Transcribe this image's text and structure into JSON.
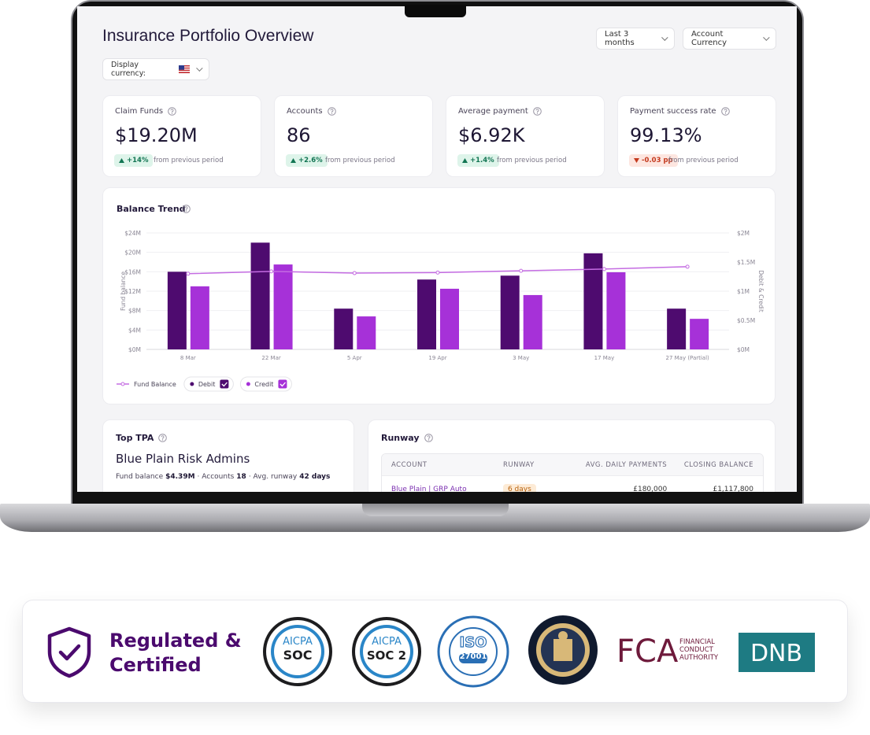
{
  "header": {
    "title": "Insurance Portfolio Overview",
    "period": "Last 3 months",
    "currency_mode": "Account Currency",
    "display_currency": "Display currency:"
  },
  "kpis": [
    {
      "label": "Claim Funds",
      "value": "$19.20M",
      "change": "+14%",
      "note": "from previous period"
    },
    {
      "label": "Accounts",
      "value": "86",
      "change": "+2.6%",
      "note": "from previous period"
    },
    {
      "label": "Average payment",
      "value": "$6.92K",
      "change": "+1.4%",
      "note": "from previous period"
    },
    {
      "label": "Payment success rate",
      "value": "99.13%",
      "change": "-0.03 pp",
      "note": "from previous period"
    }
  ],
  "chart_data": {
    "type": "bar",
    "title": "Balance Trend",
    "y_label": "Fund balance",
    "y2_label": "Debit & Credit",
    "categories": [
      "8 Mar",
      "22 Mar",
      "5 Apr",
      "19 Apr",
      "3 May",
      "17 May",
      "27 May (Partial)"
    ],
    "series": [
      {
        "name": "Fund Balance",
        "type": "line",
        "axis": "y2",
        "color": "#c46ce2",
        "values": [
          1.3,
          1.34,
          1.31,
          1.32,
          1.35,
          1.38,
          1.42
        ]
      },
      {
        "name": "Debit",
        "color": "#4e0b6f",
        "values": [
          16.0,
          22.0,
          8.4,
          14.4,
          15.2,
          19.8,
          8.4
        ]
      },
      {
        "name": "Credit",
        "color": "#a631d8",
        "values": [
          13.0,
          17.5,
          6.8,
          12.5,
          11.2,
          15.9,
          6.3
        ]
      }
    ],
    "ylim": [
      0,
      24
    ],
    "yticks": [
      {
        "value": 0,
        "label": "$0M"
      },
      {
        "value": 4,
        "label": "$4M"
      },
      {
        "value": 8,
        "label": "$8M"
      },
      {
        "value": 12,
        "label": "$12M"
      },
      {
        "value": 16,
        "label": "$16M"
      },
      {
        "value": 20,
        "label": "$20M"
      },
      {
        "value": 24,
        "label": "$24M"
      }
    ],
    "y2lim": [
      0,
      2
    ],
    "y2ticks": [
      {
        "value": 0,
        "label": "$0M"
      },
      {
        "value": 0.5,
        "label": "$0.5M"
      },
      {
        "value": 1,
        "label": "$1M"
      },
      {
        "value": 1.5,
        "label": "$1.5M"
      },
      {
        "value": 2,
        "label": "$2M"
      }
    ],
    "grid": true
  },
  "top_tpa": {
    "title": "Top TPA",
    "name": "Blue Plain Risk Admins",
    "stats": [
      "Fund balance",
      "$4.39M",
      "· Accounts",
      "18",
      "· Avg. runway",
      "42 days"
    ]
  },
  "runway": {
    "title": "Runway",
    "table": {
      "columns": [
        "ACCOUNT",
        "RUNWAY",
        "AVG. DAILY PAYMENTS",
        "CLOSING BALANCE"
      ],
      "rows": [
        [
          "Blue Plain | GRP Auto",
          "6 days",
          "£180,000",
          "£1,117,800"
        ]
      ]
    }
  },
  "certifications": {
    "title_lines": [
      "Regulated &",
      "Certified"
    ],
    "logos": [
      {
        "lines": [
          "AICPA",
          "SOC"
        ]
      },
      {
        "lines": [
          "AICPA",
          "SOC 2"
        ]
      },
      {
        "lines": [
          "ISO",
          "27001"
        ]
      },
      {
        "lines": [
          "FCA",
          "FINANCIAL",
          "CONDUCT",
          "AUTHORITY"
        ]
      },
      {
        "lines": [
          "DNB"
        ]
      }
    ]
  }
}
